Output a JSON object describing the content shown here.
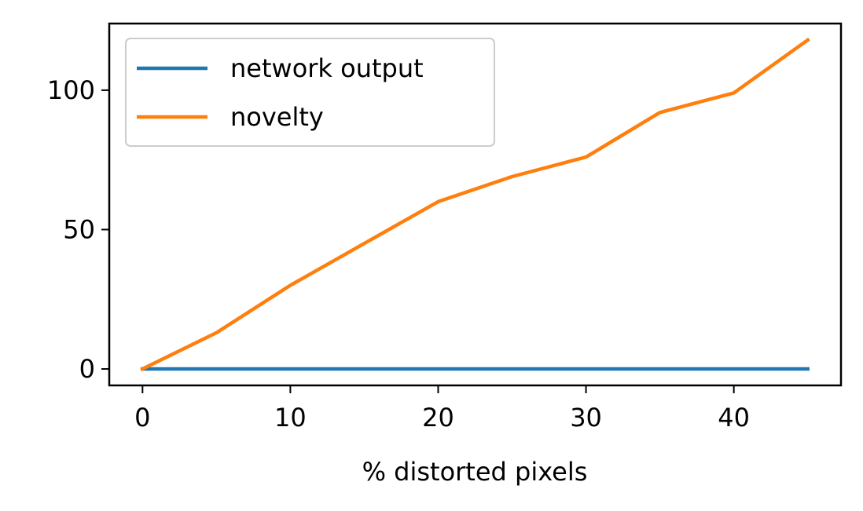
{
  "chart_data": {
    "type": "line",
    "xlabel": "% distorted pixels",
    "ylabel": "",
    "xlim": [
      -2.25,
      47.25
    ],
    "ylim": [
      -5.9,
      123.9
    ],
    "xticks": [
      0,
      10,
      20,
      30,
      40
    ],
    "yticks": [
      0,
      50,
      100
    ],
    "grid": false,
    "legend_position": "top-left",
    "x": [
      0,
      5,
      10,
      15,
      20,
      25,
      30,
      35,
      40,
      45
    ],
    "series": [
      {
        "name": "network output",
        "color": "#1f77b4",
        "values": [
          0,
          0,
          0,
          0,
          0,
          0,
          0,
          0,
          0,
          0
        ]
      },
      {
        "name": "novelty",
        "color": "#ff7f0e",
        "values": [
          0,
          13,
          30,
          45,
          60,
          69,
          76,
          92,
          99,
          118
        ]
      }
    ]
  }
}
